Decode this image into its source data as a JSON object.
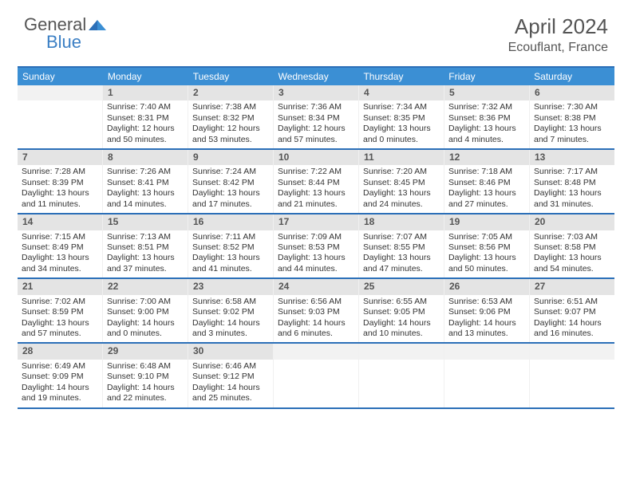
{
  "logo": {
    "part1": "General",
    "part2": "Blue"
  },
  "title": "April 2024",
  "location": "Ecouflant, France",
  "colors": {
    "header_bg": "#3b8fd4",
    "header_border": "#2b6fb8",
    "daynum_bg": "#e4e4e4",
    "text": "#333333",
    "title_text": "#555555"
  },
  "dayHeaders": [
    "Sunday",
    "Monday",
    "Tuesday",
    "Wednesday",
    "Thursday",
    "Friday",
    "Saturday"
  ],
  "weeks": [
    [
      {
        "n": "",
        "sr": "",
        "ss": "",
        "dl": ""
      },
      {
        "n": "1",
        "sr": "Sunrise: 7:40 AM",
        "ss": "Sunset: 8:31 PM",
        "dl": "Daylight: 12 hours and 50 minutes."
      },
      {
        "n": "2",
        "sr": "Sunrise: 7:38 AM",
        "ss": "Sunset: 8:32 PM",
        "dl": "Daylight: 12 hours and 53 minutes."
      },
      {
        "n": "3",
        "sr": "Sunrise: 7:36 AM",
        "ss": "Sunset: 8:34 PM",
        "dl": "Daylight: 12 hours and 57 minutes."
      },
      {
        "n": "4",
        "sr": "Sunrise: 7:34 AM",
        "ss": "Sunset: 8:35 PM",
        "dl": "Daylight: 13 hours and 0 minutes."
      },
      {
        "n": "5",
        "sr": "Sunrise: 7:32 AM",
        "ss": "Sunset: 8:36 PM",
        "dl": "Daylight: 13 hours and 4 minutes."
      },
      {
        "n": "6",
        "sr": "Sunrise: 7:30 AM",
        "ss": "Sunset: 8:38 PM",
        "dl": "Daylight: 13 hours and 7 minutes."
      }
    ],
    [
      {
        "n": "7",
        "sr": "Sunrise: 7:28 AM",
        "ss": "Sunset: 8:39 PM",
        "dl": "Daylight: 13 hours and 11 minutes."
      },
      {
        "n": "8",
        "sr": "Sunrise: 7:26 AM",
        "ss": "Sunset: 8:41 PM",
        "dl": "Daylight: 13 hours and 14 minutes."
      },
      {
        "n": "9",
        "sr": "Sunrise: 7:24 AM",
        "ss": "Sunset: 8:42 PM",
        "dl": "Daylight: 13 hours and 17 minutes."
      },
      {
        "n": "10",
        "sr": "Sunrise: 7:22 AM",
        "ss": "Sunset: 8:44 PM",
        "dl": "Daylight: 13 hours and 21 minutes."
      },
      {
        "n": "11",
        "sr": "Sunrise: 7:20 AM",
        "ss": "Sunset: 8:45 PM",
        "dl": "Daylight: 13 hours and 24 minutes."
      },
      {
        "n": "12",
        "sr": "Sunrise: 7:18 AM",
        "ss": "Sunset: 8:46 PM",
        "dl": "Daylight: 13 hours and 27 minutes."
      },
      {
        "n": "13",
        "sr": "Sunrise: 7:17 AM",
        "ss": "Sunset: 8:48 PM",
        "dl": "Daylight: 13 hours and 31 minutes."
      }
    ],
    [
      {
        "n": "14",
        "sr": "Sunrise: 7:15 AM",
        "ss": "Sunset: 8:49 PM",
        "dl": "Daylight: 13 hours and 34 minutes."
      },
      {
        "n": "15",
        "sr": "Sunrise: 7:13 AM",
        "ss": "Sunset: 8:51 PM",
        "dl": "Daylight: 13 hours and 37 minutes."
      },
      {
        "n": "16",
        "sr": "Sunrise: 7:11 AM",
        "ss": "Sunset: 8:52 PM",
        "dl": "Daylight: 13 hours and 41 minutes."
      },
      {
        "n": "17",
        "sr": "Sunrise: 7:09 AM",
        "ss": "Sunset: 8:53 PM",
        "dl": "Daylight: 13 hours and 44 minutes."
      },
      {
        "n": "18",
        "sr": "Sunrise: 7:07 AM",
        "ss": "Sunset: 8:55 PM",
        "dl": "Daylight: 13 hours and 47 minutes."
      },
      {
        "n": "19",
        "sr": "Sunrise: 7:05 AM",
        "ss": "Sunset: 8:56 PM",
        "dl": "Daylight: 13 hours and 50 minutes."
      },
      {
        "n": "20",
        "sr": "Sunrise: 7:03 AM",
        "ss": "Sunset: 8:58 PM",
        "dl": "Daylight: 13 hours and 54 minutes."
      }
    ],
    [
      {
        "n": "21",
        "sr": "Sunrise: 7:02 AM",
        "ss": "Sunset: 8:59 PM",
        "dl": "Daylight: 13 hours and 57 minutes."
      },
      {
        "n": "22",
        "sr": "Sunrise: 7:00 AM",
        "ss": "Sunset: 9:00 PM",
        "dl": "Daylight: 14 hours and 0 minutes."
      },
      {
        "n": "23",
        "sr": "Sunrise: 6:58 AM",
        "ss": "Sunset: 9:02 PM",
        "dl": "Daylight: 14 hours and 3 minutes."
      },
      {
        "n": "24",
        "sr": "Sunrise: 6:56 AM",
        "ss": "Sunset: 9:03 PM",
        "dl": "Daylight: 14 hours and 6 minutes."
      },
      {
        "n": "25",
        "sr": "Sunrise: 6:55 AM",
        "ss": "Sunset: 9:05 PM",
        "dl": "Daylight: 14 hours and 10 minutes."
      },
      {
        "n": "26",
        "sr": "Sunrise: 6:53 AM",
        "ss": "Sunset: 9:06 PM",
        "dl": "Daylight: 14 hours and 13 minutes."
      },
      {
        "n": "27",
        "sr": "Sunrise: 6:51 AM",
        "ss": "Sunset: 9:07 PM",
        "dl": "Daylight: 14 hours and 16 minutes."
      }
    ],
    [
      {
        "n": "28",
        "sr": "Sunrise: 6:49 AM",
        "ss": "Sunset: 9:09 PM",
        "dl": "Daylight: 14 hours and 19 minutes."
      },
      {
        "n": "29",
        "sr": "Sunrise: 6:48 AM",
        "ss": "Sunset: 9:10 PM",
        "dl": "Daylight: 14 hours and 22 minutes."
      },
      {
        "n": "30",
        "sr": "Sunrise: 6:46 AM",
        "ss": "Sunset: 9:12 PM",
        "dl": "Daylight: 14 hours and 25 minutes."
      },
      {
        "n": "",
        "sr": "",
        "ss": "",
        "dl": ""
      },
      {
        "n": "",
        "sr": "",
        "ss": "",
        "dl": ""
      },
      {
        "n": "",
        "sr": "",
        "ss": "",
        "dl": ""
      },
      {
        "n": "",
        "sr": "",
        "ss": "",
        "dl": ""
      }
    ]
  ]
}
